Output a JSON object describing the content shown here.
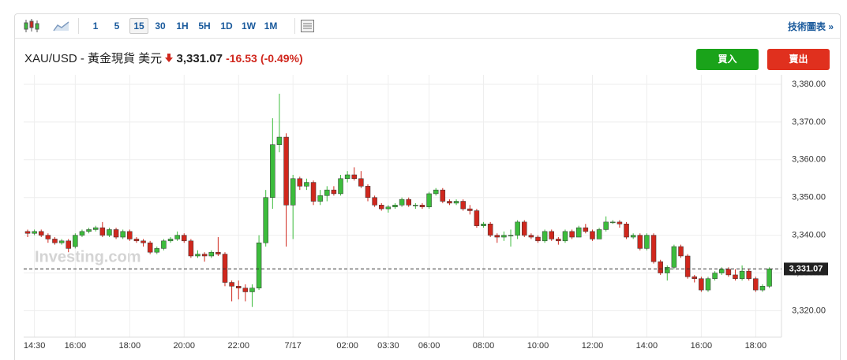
{
  "toolbar": {
    "intervals": [
      "1",
      "5",
      "15",
      "30",
      "1H",
      "5H",
      "1D",
      "1W",
      "1M"
    ],
    "selected": 2,
    "technical_chart": "技術圖表 »"
  },
  "header": {
    "instrument": "XAU/USD - 黃金現貨 美元",
    "price": {
      "value": 3331.07,
      "label": "3,331.07"
    },
    "change": -16.53,
    "change_pct": {
      "value": -0.49,
      "label": "(-0.49%)"
    },
    "buy": "買入",
    "sell": "賣出"
  },
  "chart_data": {
    "type": "candlestick",
    "watermark": "Investing.com",
    "up_color": "#3cbc3c",
    "down_color": "#d0271d",
    "grid": true,
    "last_price": {
      "value": 3331.07,
      "label": "3,331.07"
    },
    "ylim": [
      3313,
      3382.5
    ],
    "yticks": [
      {
        "value": 3320,
        "label": "3,320.00"
      },
      {
        "value": 3330,
        "label": "3,330.00"
      },
      {
        "value": 3340,
        "label": "3,340.00"
      },
      {
        "value": 3350,
        "label": "3,350.00"
      },
      {
        "value": 3360,
        "label": "3,360.00"
      },
      {
        "value": 3370,
        "label": "3,370.00"
      },
      {
        "value": 3380,
        "label": "3,380.00"
      }
    ],
    "categories": [
      null,
      "14:30",
      null,
      null,
      null,
      null,
      null,
      "16:00",
      null,
      null,
      null,
      null,
      null,
      null,
      null,
      "18:00",
      null,
      null,
      null,
      null,
      null,
      null,
      null,
      "20:00",
      null,
      null,
      null,
      null,
      null,
      null,
      null,
      "22:00",
      null,
      null,
      null,
      null,
      null,
      null,
      null,
      "7/17",
      null,
      null,
      null,
      null,
      null,
      null,
      null,
      "02:00",
      null,
      null,
      null,
      null,
      null,
      "03:30",
      null,
      null,
      null,
      null,
      null,
      "06:00",
      null,
      null,
      null,
      null,
      null,
      null,
      null,
      "08:00",
      null,
      null,
      null,
      null,
      null,
      null,
      null,
      "10:00",
      null,
      null,
      null,
      null,
      null,
      null,
      null,
      "12:00",
      null,
      null,
      null,
      null,
      null,
      null,
      null,
      "14:00",
      null,
      null,
      null,
      null,
      null,
      null,
      null,
      "16:00",
      null,
      null,
      null,
      null,
      null,
      null,
      null,
      "18:00",
      null,
      null
    ],
    "open": [
      3341,
      3340.5,
      3341,
      3340,
      3339,
      3338,
      3338.5,
      3337,
      3340,
      3341,
      3341.5,
      3342,
      3340,
      3341.5,
      3339.5,
      3341,
      3339,
      3338.5,
      3338,
      3335.5,
      3336.5,
      3338.5,
      3339,
      3340,
      3338.5,
      3334.5,
      3335,
      3334.5,
      3335.5,
      3335,
      3327.5,
      3326.5,
      3326,
      3325,
      3326,
      3338,
      3350,
      3364,
      3366,
      3348,
      3355,
      3353,
      3354,
      3349,
      3350.5,
      3352,
      3351,
      3355,
      3356,
      3355,
      3353,
      3350,
      3348,
      3347,
      3347.5,
      3348,
      3349.5,
      3348,
      3348,
      3347.5,
      3351,
      3352,
      3349,
      3348.5,
      3349,
      3347,
      3346.5,
      3342.5,
      3343,
      3340,
      3339.5,
      3340,
      3340,
      3343.5,
      3340,
      3339.5,
      3338.5,
      3341,
      3339,
      3338.5,
      3341,
      3339.5,
      3342,
      3341,
      3339,
      3341.5,
      3343.5,
      3343.5,
      3343,
      3339.5,
      3340,
      3336.5,
      3340,
      3333,
      3330,
      3331.5,
      3337,
      3334.5,
      3329,
      3328.5,
      3325.5,
      3328.5,
      3330,
      3331,
      3329.5,
      3328.5,
      3330.5,
      3328.5,
      3325.5,
      3326.5
    ],
    "high": [
      3341.5,
      3341.5,
      3341.5,
      3340.5,
      3339.5,
      3339,
      3339,
      3340.5,
      3341.5,
      3342,
      3342.5,
      3343.5,
      3342,
      3342,
      3341.5,
      3341.5,
      3339.5,
      3339,
      3338.5,
      3337,
      3339,
      3339.5,
      3341,
      3340.5,
      3339,
      3336,
      3335.5,
      3336,
      3339.5,
      3335.5,
      3328,
      3328,
      3327,
      3327,
      3340,
      3352,
      3371,
      3377.5,
      3367,
      3356,
      3355.5,
      3355,
      3354.5,
      3352,
      3353,
      3353,
      3356,
      3357,
      3358,
      3357,
      3353.5,
      3350.5,
      3348.5,
      3348,
      3348.5,
      3350,
      3350,
      3348.5,
      3348.5,
      3351.5,
      3352.5,
      3352.5,
      3349.5,
      3349.5,
      3349.5,
      3348,
      3347,
      3343.5,
      3343.5,
      3340.5,
      3341,
      3341.5,
      3344,
      3344,
      3340.5,
      3340,
      3341.5,
      3341.5,
      3339.5,
      3341.5,
      3341.5,
      3342.5,
      3343,
      3341.5,
      3342,
      3345,
      3344,
      3344,
      3343.5,
      3340.5,
      3340.5,
      3340.5,
      3340.5,
      3333.5,
      3332,
      3337.5,
      3337.5,
      3335,
      3329.5,
      3329,
      3329,
      3330.5,
      3331.5,
      3331.5,
      3331,
      3332,
      3331,
      3329,
      3327,
      3331.5
    ],
    "low": [
      3339.5,
      3340,
      3339.5,
      3338,
      3337.5,
      3337.5,
      3335.5,
      3336.5,
      3339.5,
      3340.5,
      3341,
      3339.5,
      3339.5,
      3339,
      3339,
      3338.5,
      3338,
      3337,
      3335,
      3335,
      3336,
      3338,
      3338.5,
      3338,
      3334,
      3334,
      3333,
      3334,
      3334.5,
      3326.5,
      3322.5,
      3323,
      3322.5,
      3321,
      3325.5,
      3337,
      3347,
      3362,
      3337,
      3339,
      3352,
      3352,
      3348,
      3348,
      3349,
      3350.5,
      3350.5,
      3354,
      3354.5,
      3352.5,
      3349,
      3347.5,
      3346.5,
      3346,
      3347,
      3347.5,
      3347.5,
      3347,
      3347,
      3347,
      3350.5,
      3348.5,
      3348,
      3348,
      3346.5,
      3345.5,
      3342,
      3342,
      3339.5,
      3338,
      3338.5,
      3337,
      3339,
      3339.5,
      3339,
      3338,
      3338,
      3338.5,
      3337.5,
      3338,
      3339,
      3339.5,
      3340.5,
      3338.5,
      3339,
      3341,
      3343,
      3342,
      3339,
      3339,
      3336,
      3336,
      3332.5,
      3329.5,
      3328,
      3331,
      3334,
      3328.5,
      3327.5,
      3325,
      3325,
      3328,
      3329.5,
      3329,
      3328,
      3328,
      3328,
      3325,
      3325,
      3326
    ],
    "close": [
      3340.5,
      3341,
      3340,
      3339,
      3338,
      3338.5,
      3336.5,
      3340,
      3341,
      3341.5,
      3342,
      3340,
      3341.5,
      3339.5,
      3341,
      3339,
      3338.5,
      3338,
      3335.5,
      3336.5,
      3338.5,
      3339,
      3340,
      3338.5,
      3334.5,
      3335,
      3334.5,
      3335.5,
      3335,
      3327.5,
      3326.5,
      3326,
      3325,
      3326,
      3338,
      3350,
      3364,
      3366,
      3348,
      3355,
      3353,
      3354,
      3349,
      3350.5,
      3352,
      3351,
      3355,
      3356,
      3355,
      3353,
      3350,
      3348,
      3347,
      3347.5,
      3348,
      3349.5,
      3348,
      3348,
      3347.5,
      3351,
      3352,
      3349,
      3348.5,
      3349,
      3347,
      3346.5,
      3342.5,
      3343,
      3340,
      3339.5,
      3340,
      3340,
      3343.5,
      3340,
      3339.5,
      3338.5,
      3341,
      3339,
      3338.5,
      3341,
      3339.5,
      3342,
      3341,
      3339,
      3341.5,
      3343.5,
      3343.5,
      3343,
      3339.5,
      3340,
      3336.5,
      3340,
      3333,
      3330,
      3331.5,
      3337,
      3334.5,
      3329,
      3328.5,
      3325.5,
      3328.5,
      3330,
      3331,
      3329.5,
      3328.5,
      3330.5,
      3328.5,
      3325.5,
      3326.5,
      3331.07
    ]
  }
}
